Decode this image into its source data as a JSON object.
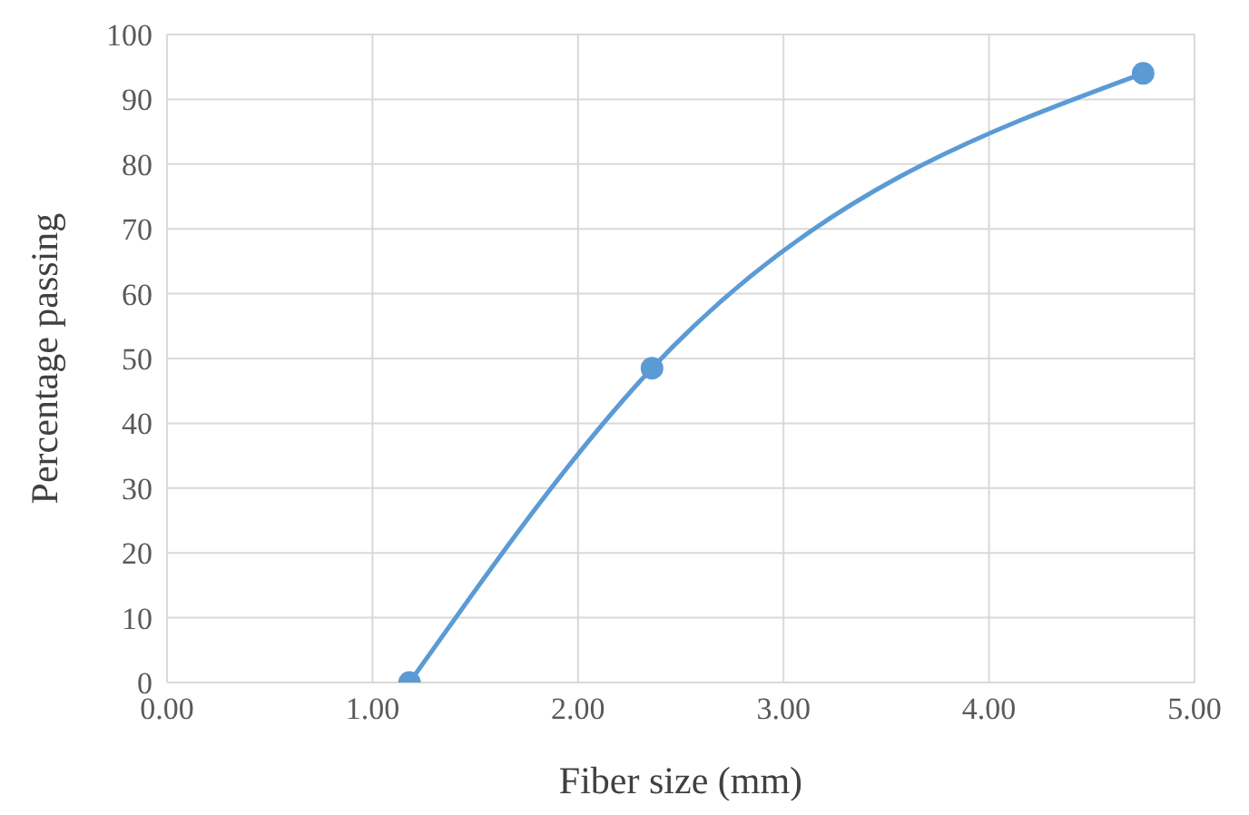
{
  "chart_data": {
    "type": "line",
    "xlabel": "Fiber size (mm)",
    "ylabel": "Percentage passing",
    "x": [
      1.18,
      2.36,
      4.75
    ],
    "series": [
      {
        "color": "#5b9bd5",
        "values": [
          0,
          48.5,
          94
        ]
      }
    ],
    "xlim": [
      0,
      5
    ],
    "xticks": [
      {
        "value": 0,
        "label": "0.00"
      },
      {
        "value": 1,
        "label": "1.00"
      },
      {
        "value": 2,
        "label": "2.00"
      },
      {
        "value": 3,
        "label": "3.00"
      },
      {
        "value": 4,
        "label": "4.00"
      },
      {
        "value": 5,
        "label": "5.00"
      }
    ],
    "ylim": [
      0,
      100
    ],
    "yticks": [
      0,
      10,
      20,
      30,
      40,
      50,
      60,
      70,
      80,
      90,
      100
    ],
    "grid": true,
    "marker": "circle",
    "line_style": "solid"
  }
}
